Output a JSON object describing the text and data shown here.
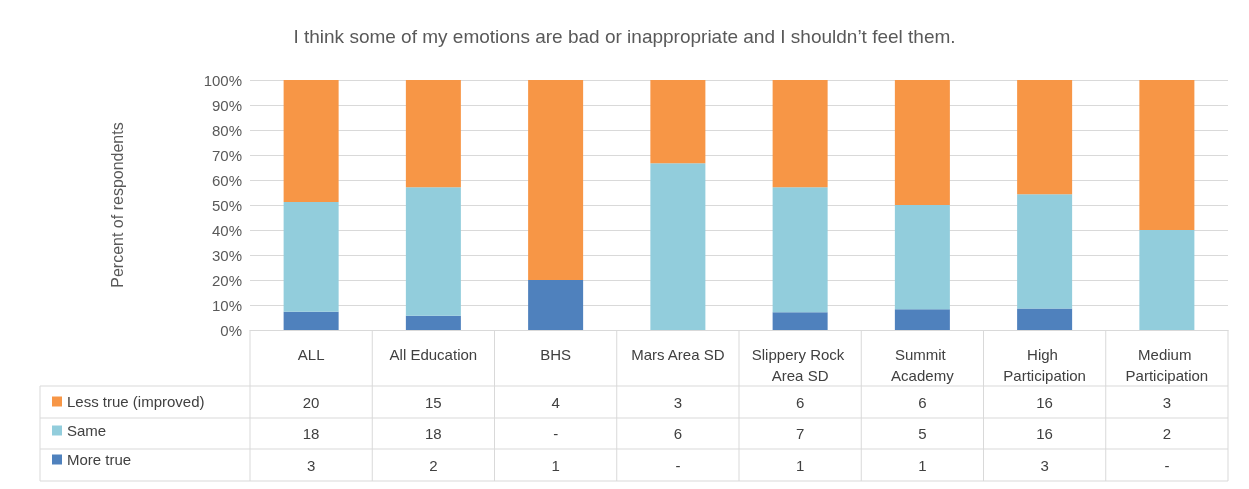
{
  "chart_data": {
    "type": "bar",
    "stacked": true,
    "title": "I think some of my emotions are bad or inappropriate and I shouldn’t feel them.",
    "ylabel": "Percent of respondents",
    "categories": [
      "ALL",
      "All Education",
      "BHS",
      "Mars Area SD",
      "Slippery Rock Area SD",
      "Summit Academy",
      "High Participation",
      "Medium Participation"
    ],
    "series": [
      {
        "name": "More true",
        "color": "#4f81bd",
        "values": [
          7.3,
          5.7,
          20,
          0,
          7.1,
          8.3,
          8.6,
          0
        ]
      },
      {
        "name": "Same",
        "color": "#92cddc",
        "values": [
          43.9,
          51.4,
          0,
          66.7,
          50,
          41.7,
          45.7,
          40
        ]
      },
      {
        "name": "Less true (improved)",
        "color": "#f79646",
        "values": [
          48.8,
          42.9,
          80,
          33.3,
          42.9,
          50,
          45.7,
          60
        ]
      }
    ],
    "annotations": [
      "20",
      "15",
      "4",
      "3",
      "6",
      "6",
      "16",
      "3",
      "18",
      "18",
      "-",
      "6",
      "7",
      "5",
      "16",
      "2",
      "3",
      "2",
      "1",
      "-",
      "1",
      "1",
      "3",
      "-"
    ],
    "ylim": [
      0,
      100
    ],
    "yticks": [
      {
        "value": 0,
        "label": "0%"
      },
      {
        "value": 10,
        "label": "10%"
      },
      {
        "value": 20,
        "label": "20%"
      },
      {
        "value": 30,
        "label": "30%"
      },
      {
        "value": 40,
        "label": "40%"
      },
      {
        "value": 50,
        "label": "50%"
      },
      {
        "value": 60,
        "label": "60%"
      },
      {
        "value": 70,
        "label": "70%"
      },
      {
        "value": 80,
        "label": "80%"
      },
      {
        "value": 90,
        "label": "90%"
      },
      {
        "value": 100,
        "label": "100%"
      }
    ],
    "grid": "y",
    "legend": "bottom left"
  }
}
